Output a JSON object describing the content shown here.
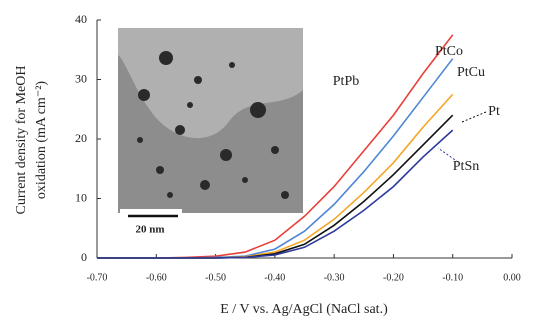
{
  "chart_data": {
    "type": "line",
    "ylabel": [
      "Current density for MeOH",
      "oxidation (mA cm⁻²)"
    ],
    "xlabel": "E / V vs. Ag/AgCl (NaCl sat.)",
    "inset_scale_label": "20 nm",
    "x": [
      -0.7,
      -0.65,
      -0.6,
      -0.55,
      -0.5,
      -0.45,
      -0.4,
      -0.35,
      -0.3,
      -0.25,
      -0.2,
      -0.15,
      -0.1
    ],
    "series": [
      {
        "name": "PtPb",
        "color": "#e8403a",
        "values": [
          0,
          0,
          0,
          0.1,
          0.3,
          1,
          3,
          7,
          12,
          18,
          24,
          31,
          37.5
        ]
      },
      {
        "name": "PtCo",
        "color": "#4f86d4",
        "values": [
          0,
          0,
          0,
          0,
          0.1,
          0.3,
          1.5,
          4.5,
          9,
          14.5,
          20.5,
          27,
          33.5
        ]
      },
      {
        "name": "PtCu",
        "color": "#f5a623",
        "values": [
          0,
          0,
          0,
          0,
          0,
          0.2,
          1,
          3,
          6.5,
          11,
          16,
          22,
          27.5
        ]
      },
      {
        "name": "Pt",
        "color": "#111111",
        "values": [
          0,
          0,
          0,
          0,
          0,
          0.1,
          0.7,
          2.3,
          5.5,
          9.5,
          14,
          19,
          24
        ]
      },
      {
        "name": "PtSn",
        "color": "#2d3b9c",
        "values": [
          0,
          0,
          0,
          0,
          0,
          0.1,
          0.5,
          1.8,
          4.5,
          8,
          12,
          17,
          21.5
        ]
      }
    ],
    "xlim": [
      -0.7,
      0.0
    ],
    "xticks": [
      {
        "value": -0.7,
        "label": "-0.70"
      },
      {
        "value": -0.6,
        "label": "-0.60"
      },
      {
        "value": -0.5,
        "label": "-0.50"
      },
      {
        "value": -0.4,
        "label": "-0.40"
      },
      {
        "value": -0.3,
        "label": "-0.30"
      },
      {
        "value": -0.2,
        "label": "-0.20"
      },
      {
        "value": -0.1,
        "label": "-0.10"
      },
      {
        "value": 0.0,
        "label": "0.00"
      }
    ],
    "ylim": [
      0,
      40
    ],
    "yticks": [
      0,
      10,
      20,
      30,
      40
    ]
  }
}
